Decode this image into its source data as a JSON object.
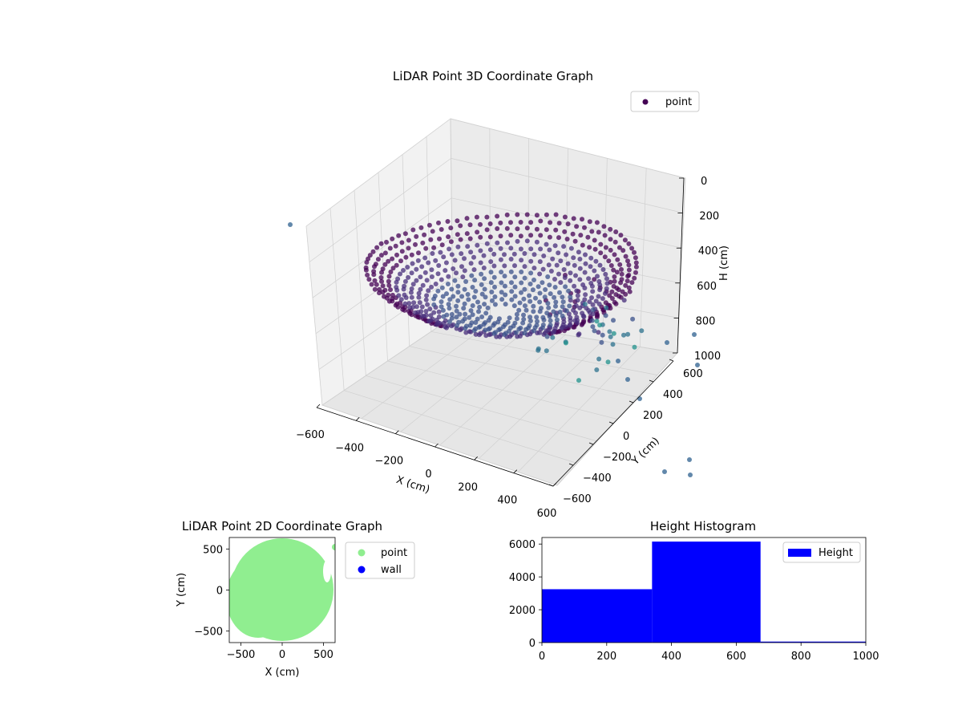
{
  "charts": {
    "c3d": {
      "title": "LiDAR Point 3D Coordinate Graph",
      "xlabel": "X (cm)",
      "ylabel": "Y (cm)",
      "zlabel": "H (cm)",
      "legend": [
        "point"
      ]
    },
    "c2d": {
      "title": "LiDAR Point 2D Coordinate Graph",
      "xlabel": "X (cm)",
      "ylabel": "Y (cm)",
      "legend": [
        "point",
        "wall"
      ]
    },
    "hist": {
      "title": "Height Histogram",
      "legend": [
        "Height"
      ]
    }
  },
  "chart_data": [
    {
      "type": "scatter",
      "projection": "3d",
      "title": "LiDAR Point 3D Coordinate Graph",
      "xlabel": "X (cm)",
      "ylabel": "Y (cm)",
      "zlabel": "H (cm)",
      "xlim": [
        -600,
        600
      ],
      "ylim": [
        -600,
        600
      ],
      "zlim": [
        0,
        1000
      ],
      "z_axis_inverted": true,
      "xticks": [
        "−600",
        "−400",
        "−200",
        "0",
        "200",
        "400",
        "600"
      ],
      "yticks": [
        "−600",
        "−400",
        "−200",
        "0",
        "200",
        "400",
        "600"
      ],
      "zticks": [
        "0",
        "200",
        "400",
        "600",
        "800",
        "1000"
      ],
      "grid": true,
      "legend_position": "top-right",
      "series": [
        {
          "name": "point",
          "colormap": "viridis",
          "color": "#440154"
        }
      ],
      "shape": "bowl-shaped point cloud, radius about 600 cm, height about 300–550 cm"
    },
    {
      "type": "scatter",
      "title": "LiDAR Point 2D Coordinate Graph",
      "xlabel": "X (cm)",
      "ylabel": "Y (cm)",
      "xlim": [
        -640,
        640
      ],
      "ylim": [
        -640,
        640
      ],
      "xticks": [
        -500,
        0,
        500
      ],
      "yticks": [
        -500,
        0,
        500
      ],
      "legend_position": "outside-right",
      "series": [
        {
          "name": "point",
          "color": "#90ee90",
          "shape": "filled disc, radius about 620 cm"
        },
        {
          "name": "wall",
          "color": "#0000ff",
          "points": []
        }
      ]
    },
    {
      "type": "bar",
      "title": "Height Histogram",
      "xlim": [
        0,
        1000
      ],
      "ylim": [
        0,
        6400
      ],
      "xticks": [
        0,
        200,
        400,
        600,
        800,
        1000
      ],
      "yticks": [
        0,
        2000,
        4000,
        6000
      ],
      "legend_position": "top-right",
      "series": [
        {
          "name": "Height",
          "color": "#0000ff",
          "bins": [
            {
              "start": 0,
              "end": 340,
              "count": 3250
            },
            {
              "start": 340,
              "end": 675,
              "count": 6150
            },
            {
              "start": 675,
              "end": 1000,
              "count": 60
            }
          ]
        }
      ]
    }
  ]
}
